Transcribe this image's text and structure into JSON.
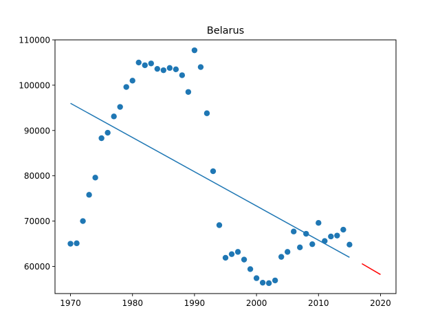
{
  "chart_data": {
    "type": "scatter",
    "title": "Belarus",
    "xlabel": "",
    "ylabel": "",
    "xlim": [
      1967.5,
      2022.5
    ],
    "ylim": [
      54000,
      110000
    ],
    "grid": false,
    "x_ticks": [
      1970,
      1980,
      1990,
      2000,
      2010,
      2020
    ],
    "x_tick_labels": [
      "1970",
      "1980",
      "1990",
      "2000",
      "2010",
      "2020"
    ],
    "y_ticks": [
      60000,
      70000,
      80000,
      90000,
      100000,
      110000
    ],
    "y_tick_labels": [
      "60000",
      "70000",
      "80000",
      "90000",
      "100000",
      "110000"
    ],
    "series": [
      {
        "kind": "scatter",
        "color": "#1f77b4",
        "x": [
          1970,
          1971,
          1972,
          1973,
          1974,
          1975,
          1976,
          1977,
          1978,
          1979,
          1980,
          1981,
          1982,
          1983,
          1984,
          1985,
          1986,
          1987,
          1988,
          1989,
          1990,
          1991,
          1992,
          1993,
          1994,
          1995,
          1996,
          1997,
          1998,
          1999,
          2000,
          2001,
          2002,
          2003,
          2004,
          2005,
          2006,
          2007,
          2008,
          2009,
          2010,
          2011,
          2012,
          2013,
          2014,
          2015
        ],
        "y": [
          65000,
          65100,
          70000,
          75800,
          79600,
          88300,
          89500,
          93100,
          95200,
          99600,
          101000,
          105000,
          104400,
          104800,
          103600,
          103300,
          103800,
          103500,
          102200,
          98500,
          107700,
          104000,
          93800,
          81000,
          69100,
          61900,
          62700,
          63200,
          61500,
          59400,
          57400,
          56400,
          56300,
          56900,
          62100,
          63200,
          67700,
          64200,
          67200,
          64900,
          69600,
          65600,
          66600,
          66800,
          68100,
          64800
        ]
      },
      {
        "kind": "line",
        "color": "#1f77b4",
        "x": [
          1970,
          2015
        ],
        "y": [
          96000,
          62000
        ]
      },
      {
        "kind": "line",
        "color": "#ff0000",
        "x": [
          2017,
          2020
        ],
        "y": [
          60600,
          58200
        ]
      }
    ]
  }
}
